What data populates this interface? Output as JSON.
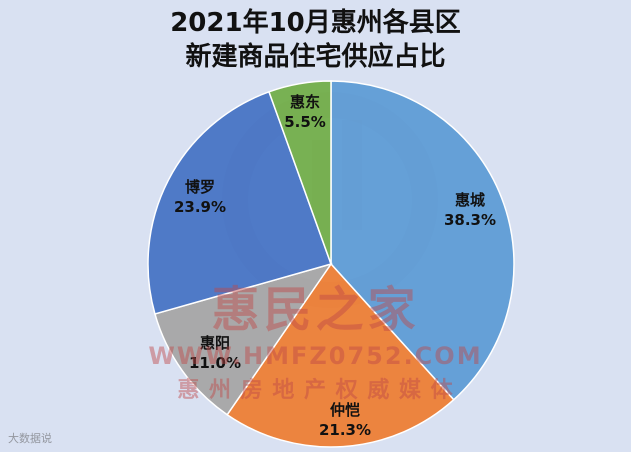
{
  "title_line1": "2021年10月惠州各县区",
  "title_line2": "新建商品住宅供应占比",
  "watermark": {
    "brand": "惠民之家",
    "url": "WWW.HMFZ0752.COM",
    "tagline": "惠 州 房 地 产 权 威 媒 体"
  },
  "corner_mark": "大数据说",
  "colors": {
    "background": "#d9e1f2",
    "惠城": "#5b9bd5",
    "仲恺": "#ed7d31",
    "惠阳": "#a5a5a5",
    "博罗": "#4472c4",
    "惠东": "#70ad47"
  },
  "chart_data": {
    "type": "pie",
    "title": "2021年10月惠州各县区新建商品住宅供应占比",
    "start": "12 o'clock, clockwise",
    "categories": [
      "惠城",
      "仲恺",
      "惠阳",
      "博罗",
      "惠东"
    ],
    "values": [
      38.3,
      21.3,
      11.0,
      23.9,
      5.5
    ],
    "labels": [
      "38.3%",
      "21.3%",
      "11.0%",
      "23.9%",
      "5.5%"
    ],
    "unit": "%"
  }
}
